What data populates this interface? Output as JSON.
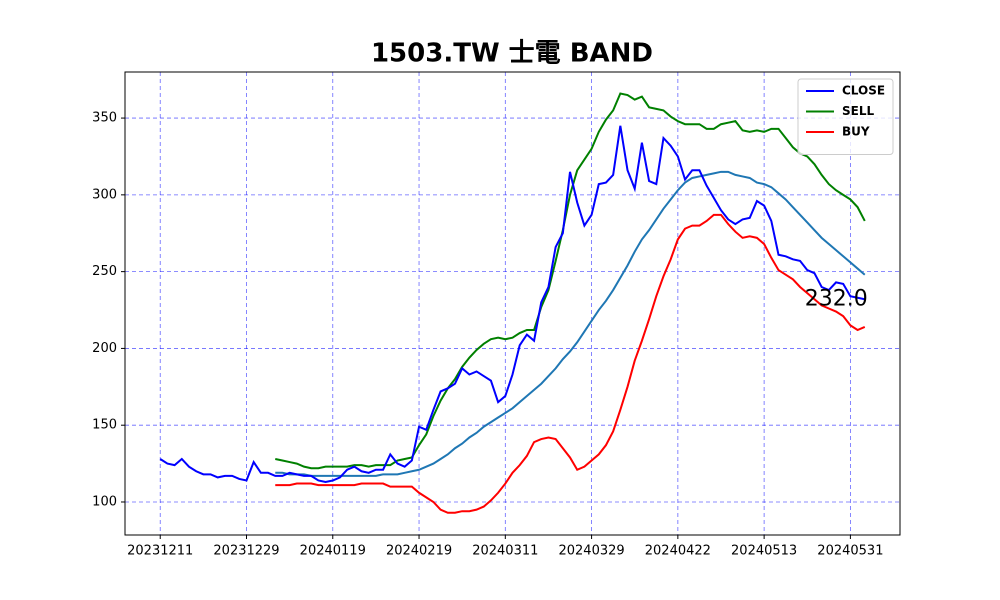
{
  "chart_data": {
    "type": "line",
    "title": "1503.TW 士電 BAND",
    "annotation": "232.0",
    "categories": [
      "20231211",
      null,
      null,
      null,
      null,
      null,
      null,
      null,
      null,
      null,
      null,
      null,
      "20231229",
      null,
      null,
      null,
      null,
      null,
      null,
      null,
      null,
      null,
      null,
      null,
      "20240119",
      null,
      null,
      null,
      null,
      null,
      null,
      null,
      null,
      null,
      null,
      null,
      "20240219",
      null,
      null,
      null,
      null,
      null,
      null,
      null,
      null,
      null,
      null,
      null,
      "20240311",
      null,
      null,
      null,
      null,
      null,
      null,
      null,
      null,
      null,
      null,
      null,
      "20240329",
      null,
      null,
      null,
      null,
      null,
      null,
      null,
      null,
      null,
      null,
      null,
      "20240422",
      null,
      null,
      null,
      null,
      null,
      null,
      null,
      null,
      null,
      null,
      null,
      "20240513",
      null,
      null,
      null,
      null,
      null,
      null,
      null,
      null,
      null,
      null,
      null,
      "20240531",
      null,
      null
    ],
    "series": [
      {
        "name": "CLOSE",
        "color": "#0000ff",
        "values": [
          128,
          125,
          124,
          128,
          123,
          120,
          118,
          118,
          116,
          117,
          117,
          115,
          114,
          126,
          119,
          119,
          117,
          117,
          119,
          118,
          117,
          117,
          114,
          113,
          114,
          116,
          121,
          123,
          120,
          119,
          121,
          121,
          131,
          125,
          123,
          127,
          149,
          147,
          160,
          172,
          174,
          177,
          187,
          183,
          185,
          182,
          179,
          165,
          169,
          183,
          202,
          209,
          205,
          230,
          240,
          266,
          275,
          315,
          295,
          280,
          287,
          307,
          308,
          313,
          345,
          316,
          304,
          334,
          309,
          307,
          337,
          332,
          325,
          310,
          316,
          316,
          306,
          298,
          290,
          284,
          281,
          284,
          285,
          296,
          293,
          283,
          261,
          260,
          258,
          257,
          251,
          249,
          240,
          238,
          243,
          242,
          234,
          233,
          232
        ]
      },
      {
        "name": "SELL",
        "color": "#008000",
        "values": [
          null,
          null,
          null,
          null,
          null,
          null,
          null,
          null,
          null,
          null,
          null,
          null,
          null,
          null,
          null,
          null,
          128,
          127,
          126,
          125,
          123,
          122,
          122,
          123,
          123,
          123,
          123,
          124,
          124,
          123,
          124,
          124,
          124,
          127,
          128,
          129,
          137,
          144,
          156,
          166,
          174,
          180,
          188,
          194,
          199,
          203,
          206,
          207,
          206,
          207,
          210,
          212,
          212,
          227,
          238,
          257,
          277,
          300,
          316,
          323,
          330,
          341,
          349,
          355,
          366,
          365,
          362,
          364,
          357,
          356,
          355,
          351,
          348,
          346,
          346,
          346,
          343,
          343,
          346,
          347,
          348,
          342,
          341,
          342,
          341,
          343,
          343,
          337,
          331,
          327,
          325,
          320,
          313,
          307,
          303,
          300,
          297,
          292,
          283
        ]
      },
      {
        "name": "BUY",
        "color": "#ff0000",
        "values": [
          null,
          null,
          null,
          null,
          null,
          null,
          null,
          null,
          null,
          null,
          null,
          null,
          null,
          null,
          null,
          null,
          111,
          111,
          111,
          112,
          112,
          112,
          111,
          111,
          111,
          111,
          111,
          111,
          112,
          112,
          112,
          112,
          110,
          110,
          110,
          110,
          106,
          103,
          100,
          95,
          93,
          93,
          94,
          94,
          95,
          97,
          101,
          106,
          112,
          119,
          124,
          130,
          139,
          141,
          142,
          141,
          135,
          129,
          121,
          123,
          127,
          131,
          137,
          146,
          160,
          175,
          192,
          205,
          219,
          234,
          247,
          258,
          271,
          278,
          280,
          280,
          283,
          287,
          287,
          281,
          276,
          272,
          273,
          272,
          268,
          259,
          251,
          248,
          245,
          240,
          236,
          232,
          228,
          226,
          224,
          221,
          215,
          212,
          214
        ]
      },
      {
        "color": "#1f77b4",
        "values": [
          null,
          null,
          null,
          null,
          null,
          null,
          null,
          null,
          null,
          null,
          null,
          null,
          null,
          null,
          null,
          null,
          119,
          119,
          118,
          118,
          118,
          117,
          117,
          117,
          117,
          117,
          117,
          117,
          117,
          117,
          117,
          118,
          118,
          118,
          119,
          120,
          121,
          123,
          125,
          128,
          131,
          135,
          138,
          142,
          145,
          149,
          152,
          155,
          158,
          161,
          165,
          169,
          173,
          177,
          182,
          187,
          193,
          198,
          204,
          211,
          218,
          225,
          231,
          238,
          246,
          254,
          263,
          271,
          277,
          284,
          291,
          297,
          303,
          308,
          311,
          312,
          313,
          314,
          315,
          315,
          313,
          312,
          311,
          308,
          307,
          305,
          301,
          297,
          292,
          287,
          282,
          277,
          272,
          268,
          264,
          260,
          256,
          252,
          248
        ]
      }
    ],
    "ylim": [
      78.5,
      380
    ],
    "yticks": [
      100,
      150,
      200,
      250,
      300,
      350
    ],
    "grid": true,
    "grid_color": "#0000ff",
    "legend": "upper right"
  }
}
